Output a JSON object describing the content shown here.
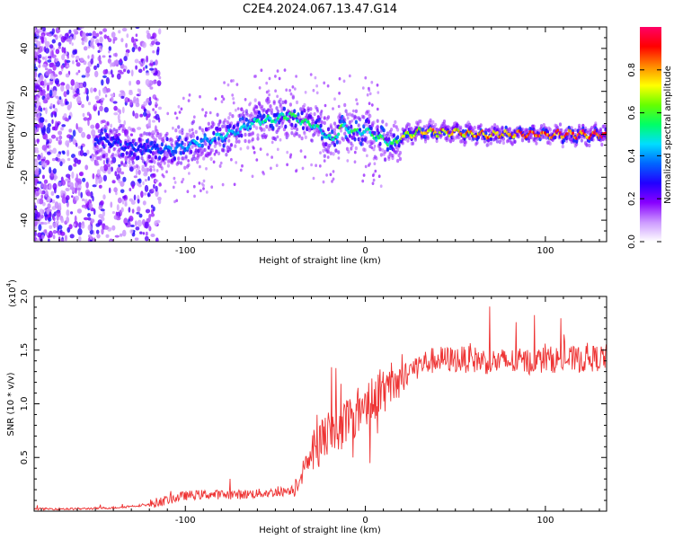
{
  "chart_data": [
    {
      "type": "heatmap",
      "title": "C2E4.2024.067.13.47.G14",
      "xlabel": "Height of straight line (km)",
      "ylabel": "Frequency (Hz)",
      "xlim": [
        -184,
        134
      ],
      "ylim": [
        -50,
        50
      ],
      "xticks": [
        -100,
        0,
        100
      ],
      "xtick_labels": [
        "-100",
        "0",
        "100"
      ],
      "yticks": [
        -40,
        -20,
        0,
        20,
        40
      ],
      "ytick_labels": [
        "-40",
        "-20",
        "0",
        "20",
        "40"
      ],
      "colorbar": {
        "label": "Normalized spectral amplitude",
        "range": [
          0,
          1
        ],
        "ticks": [
          0.0,
          0.2,
          0.4,
          0.6,
          0.8
        ],
        "tick_labels": [
          "0.0",
          "0.2",
          "0.4",
          "0.6",
          "0.8"
        ],
        "colormap": [
          "#ffffff",
          "#cc99ff",
          "#8800ff",
          "#2200ff",
          "#0066ff",
          "#00ddff",
          "#00ff66",
          "#66ff00",
          "#ffff00",
          "#ff8800",
          "#ff0000",
          "#ff0066"
        ]
      },
      "ridge": {
        "x": [
          -150,
          -135,
          -120,
          -110,
          -100,
          -90,
          -80,
          -70,
          -60,
          -50,
          -42,
          -35,
          -28,
          -22,
          -18,
          -14,
          -10,
          -5,
          0,
          5,
          10,
          15,
          20,
          25,
          30,
          40,
          50,
          60,
          80,
          100,
          134
        ],
        "freq": [
          -2,
          -5,
          -7,
          -7,
          -6,
          -3,
          -1,
          2,
          6,
          7,
          9,
          6,
          4,
          0,
          -3,
          3,
          3,
          1,
          2,
          -1,
          -2,
          -5,
          -1,
          0,
          1,
          1,
          1,
          0,
          0,
          0,
          0
        ],
        "peak_amplitude": [
          0.3,
          0.35,
          0.35,
          0.4,
          0.45,
          0.45,
          0.5,
          0.5,
          0.55,
          0.55,
          0.6,
          0.55,
          0.55,
          0.5,
          0.55,
          0.6,
          0.6,
          0.6,
          0.55,
          0.6,
          0.6,
          0.55,
          0.7,
          0.75,
          0.8,
          0.85,
          0.85,
          0.88,
          0.9,
          0.95,
          0.95
        ]
      }
    },
    {
      "type": "line",
      "xlabel": "Height of straight line (km)",
      "ylabel": "SNR (10 * v/v)",
      "y_multiplier_label": "(x10",
      "y_multiplier_exponent": "4",
      "y_multiplier_close": ")",
      "xlim": [
        -184,
        134
      ],
      "ylim": [
        0,
        2.0
      ],
      "xticks": [
        -100,
        0,
        100
      ],
      "xtick_labels": [
        "-100",
        "0",
        "100"
      ],
      "yticks": [
        0.5,
        1.0,
        1.5,
        2.0
      ],
      "ytick_labels": [
        "0.5",
        "1.0",
        "1.5",
        "2.0"
      ],
      "series": [
        {
          "name": "SNR",
          "color": "#ee3333",
          "x": [
            -184,
            -160,
            -140,
            -120,
            -110,
            -100,
            -90,
            -80,
            -70,
            -60,
            -50,
            -45,
            -40,
            -35,
            -30,
            -25,
            -20,
            -15,
            -10,
            -5,
            0,
            5,
            10,
            15,
            20,
            25,
            30,
            35,
            40,
            50,
            60,
            70,
            80,
            90,
            100,
            110,
            120,
            134
          ],
          "y": [
            0.02,
            0.02,
            0.03,
            0.06,
            0.1,
            0.14,
            0.15,
            0.15,
            0.15,
            0.16,
            0.17,
            0.18,
            0.2,
            0.35,
            0.55,
            0.65,
            0.7,
            0.75,
            0.85,
            0.9,
            1.0,
            1.05,
            1.1,
            1.15,
            1.2,
            1.3,
            1.35,
            1.38,
            1.4,
            1.4,
            1.4,
            1.38,
            1.38,
            1.38,
            1.4,
            1.4,
            1.4,
            1.42
          ]
        }
      ]
    }
  ]
}
